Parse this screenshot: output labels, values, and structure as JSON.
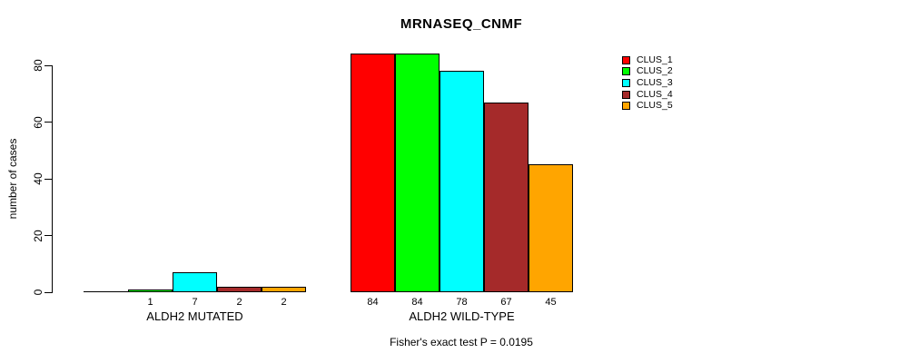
{
  "chart_data": {
    "type": "bar",
    "title": "MRNASEQ_CNMF",
    "ylabel": "number of cases",
    "xlabel": "",
    "ylim": [
      0,
      84
    ],
    "yticks": [
      0,
      20,
      40,
      60,
      80
    ],
    "grid": false,
    "legend_position": "right-outside-top",
    "categories": [
      "ALDH2 MUTATED",
      "ALDH2 WILD-TYPE"
    ],
    "series": [
      {
        "name": "CLUS_1",
        "color": "#FF0000",
        "values": [
          0,
          84
        ]
      },
      {
        "name": "CLUS_2",
        "color": "#00FF00",
        "values": [
          1,
          84
        ]
      },
      {
        "name": "CLUS_3",
        "color": "#00FFFF",
        "values": [
          7,
          78
        ]
      },
      {
        "name": "CLUS_4",
        "color": "#A52A2A",
        "values": [
          2,
          67
        ]
      },
      {
        "name": "CLUS_5",
        "color": "#FFA500",
        "values": [
          2,
          45
        ]
      }
    ],
    "bar_value_labels": [
      [
        "",
        "1",
        "7",
        "2",
        "2"
      ],
      [
        "84",
        "84",
        "78",
        "67",
        "45"
      ]
    ],
    "annotation": "Fisher's exact test P = 0.0195",
    "background_color": "#FFFFFF",
    "axis_color": "#000000"
  }
}
